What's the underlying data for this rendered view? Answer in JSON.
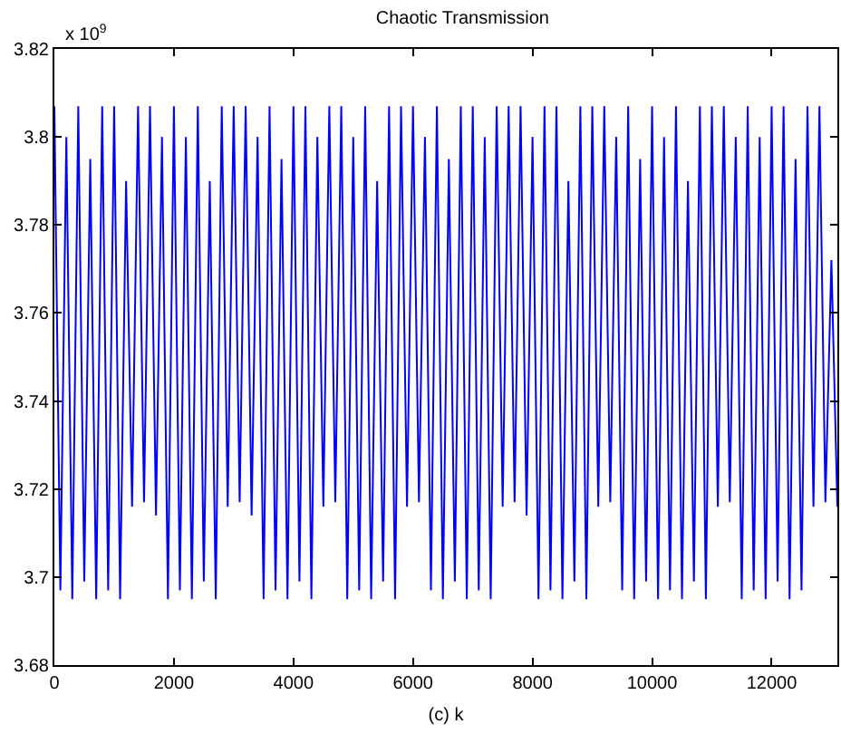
{
  "chart_data": {
    "type": "line",
    "title": "Chaotic Transmission",
    "xlabel": "(c) k",
    "annotations": [
      "x 10$^{9}$"
    ],
    "x": [
      0,
      100,
      200,
      300,
      400,
      500,
      600,
      700,
      800,
      900,
      1000,
      1100,
      1200,
      1300,
      1400,
      1500,
      1600,
      1700,
      1800,
      1900,
      2000,
      2100,
      2200,
      2300,
      2400,
      2500,
      2600,
      2700,
      2800,
      2900,
      3000,
      3100,
      3200,
      3300,
      3400,
      3500,
      3600,
      3700,
      3800,
      3900,
      4000,
      4100,
      4200,
      4300,
      4400,
      4500,
      4600,
      4700,
      4800,
      4900,
      5000,
      5100,
      5200,
      5300,
      5400,
      5500,
      5600,
      5700,
      5800,
      5900,
      6000,
      6100,
      6200,
      6300,
      6400,
      6500,
      6600,
      6700,
      6800,
      6900,
      7000,
      7100,
      7200,
      7300,
      7400,
      7500,
      7600,
      7700,
      7800,
      7900,
      8000,
      8100,
      8200,
      8300,
      8400,
      8500,
      8600,
      8700,
      8800,
      8900,
      9000,
      9100,
      9200,
      9300,
      9400,
      9500,
      9600,
      9700,
      9800,
      9900,
      10000,
      10100,
      10200,
      10300,
      10400,
      10500,
      10600,
      10700,
      10800,
      10900,
      11000,
      11100,
      11200,
      11300,
      11400,
      11500,
      11600,
      11700,
      11800,
      11900,
      12000,
      12100,
      12200,
      12300,
      12400,
      12500,
      12600,
      12700,
      12800,
      12900,
      13000,
      13100
    ],
    "series": [
      {
        "color": "#0000ff",
        "values": [
          3.807,
          3.697,
          3.8,
          3.695,
          3.807,
          3.699,
          3.795,
          3.695,
          3.807,
          3.697,
          3.807,
          3.695,
          3.79,
          3.716,
          3.807,
          3.717,
          3.807,
          3.714,
          3.8,
          3.695,
          3.807,
          3.697,
          3.8,
          3.695,
          3.807,
          3.699,
          3.79,
          3.695,
          3.807,
          3.716,
          3.807,
          3.717,
          3.807,
          3.714,
          3.8,
          3.695,
          3.807,
          3.697,
          3.795,
          3.695,
          3.807,
          3.699,
          3.807,
          3.695,
          3.8,
          3.716,
          3.807,
          3.717,
          3.807,
          3.695,
          3.8,
          3.697,
          3.807,
          3.695,
          3.79,
          3.699,
          3.807,
          3.695,
          3.807,
          3.716,
          3.807,
          3.717,
          3.8,
          3.697,
          3.807,
          3.695,
          3.795,
          3.699,
          3.807,
          3.695,
          3.807,
          3.697,
          3.8,
          3.695,
          3.807,
          3.716,
          3.807,
          3.717,
          3.807,
          3.714,
          3.8,
          3.695,
          3.807,
          3.697,
          3.807,
          3.695,
          3.79,
          3.699,
          3.807,
          3.695,
          3.807,
          3.716,
          3.807,
          3.717,
          3.8,
          3.697,
          3.807,
          3.695,
          3.795,
          3.699,
          3.807,
          3.695,
          3.8,
          3.697,
          3.807,
          3.695,
          3.79,
          3.699,
          3.807,
          3.695,
          3.807,
          3.716,
          3.807,
          3.717,
          3.8,
          3.695,
          3.807,
          3.697,
          3.8,
          3.695,
          3.807,
          3.699,
          3.807,
          3.695,
          3.795,
          3.697,
          3.807,
          3.716,
          3.807,
          3.717,
          3.772,
          3.716
        ]
      }
    ],
    "xlim": [
      0,
      13100
    ],
    "xticks": [
      0,
      2000,
      4000,
      6000,
      8000,
      10000,
      12000
    ],
    "ylim": [
      3.68,
      3.82
    ],
    "yticks": [
      3.68,
      3.7,
      3.72,
      3.74,
      3.76,
      3.78,
      3.8,
      3.82
    ],
    "grid": false,
    "marker": "none",
    "line_style": "solid"
  }
}
